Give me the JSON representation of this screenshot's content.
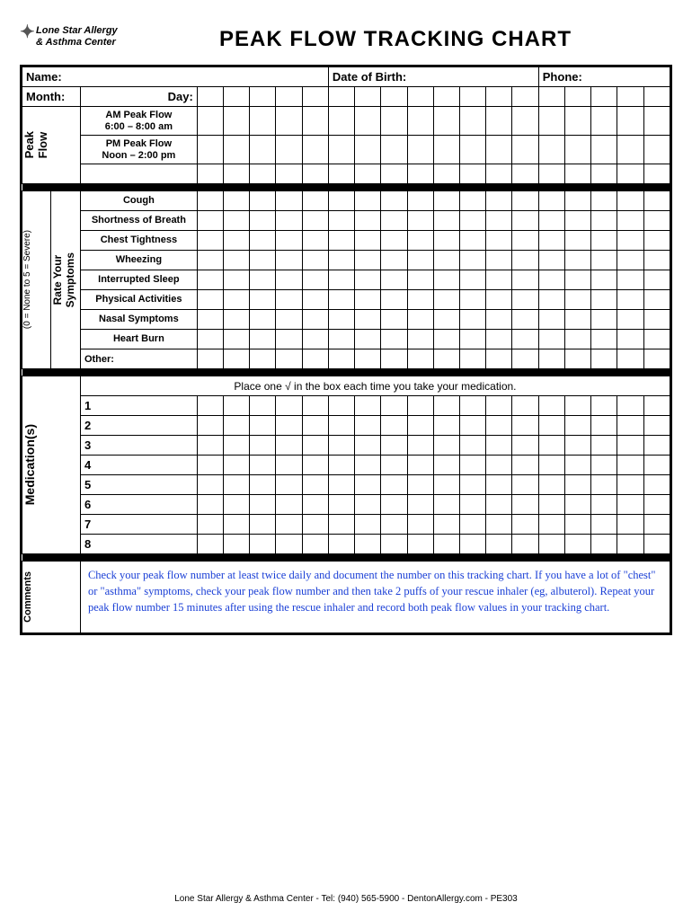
{
  "logo": {
    "line1": "Lone Star Allergy",
    "line2": "& Asthma Center"
  },
  "title": "PEAK FLOW TRACKING CHART",
  "fields": {
    "name": "Name:",
    "dob": "Date of Birth:",
    "phone": "Phone:",
    "month": "Month:",
    "day": "Day:"
  },
  "sections": {
    "peakflow": {
      "heading": "Peak\nFlow",
      "rows": [
        {
          "l1": "AM Peak Flow",
          "l2": "6:00 – 8:00 am"
        },
        {
          "l1": "PM Peak Flow",
          "l2": "Noon – 2:00 pm"
        }
      ]
    },
    "symptoms": {
      "heading": "Rate Your\nSymptoms",
      "scale": "(0 = None to 5 = Severe)",
      "rows": [
        "Cough",
        "Shortness of Breath",
        "Chest Tightness",
        "Wheezing",
        "Interrupted Sleep",
        "Physical Activities",
        "Nasal Symptoms",
        "Heart Burn"
      ],
      "other": "Other:"
    },
    "meds": {
      "heading": "Medication(s)",
      "instruction": "Place one √ in the box each time you take your medication.",
      "rows": [
        "1",
        "2",
        "3",
        "4",
        "5",
        "6",
        "7",
        "8"
      ]
    },
    "comments": {
      "heading": "Comments",
      "text": "Check your peak flow number at least twice daily and document the number on this tracking chart.  If you have a lot of \"chest\" or \"asthma\" symptoms, check your peak flow number and then take 2 puffs of your rescue inhaler (eg, albuterol).  Repeat your peak flow number 15 minutes after using the rescue inhaler and record both peak flow values in your tracking chart."
    }
  },
  "footer": "Lone Star Allergy & Asthma Center  -  Tel: (940) 565-5900  -  DentonAllergy.com  -  PE303",
  "layout": {
    "day_columns": 18
  }
}
